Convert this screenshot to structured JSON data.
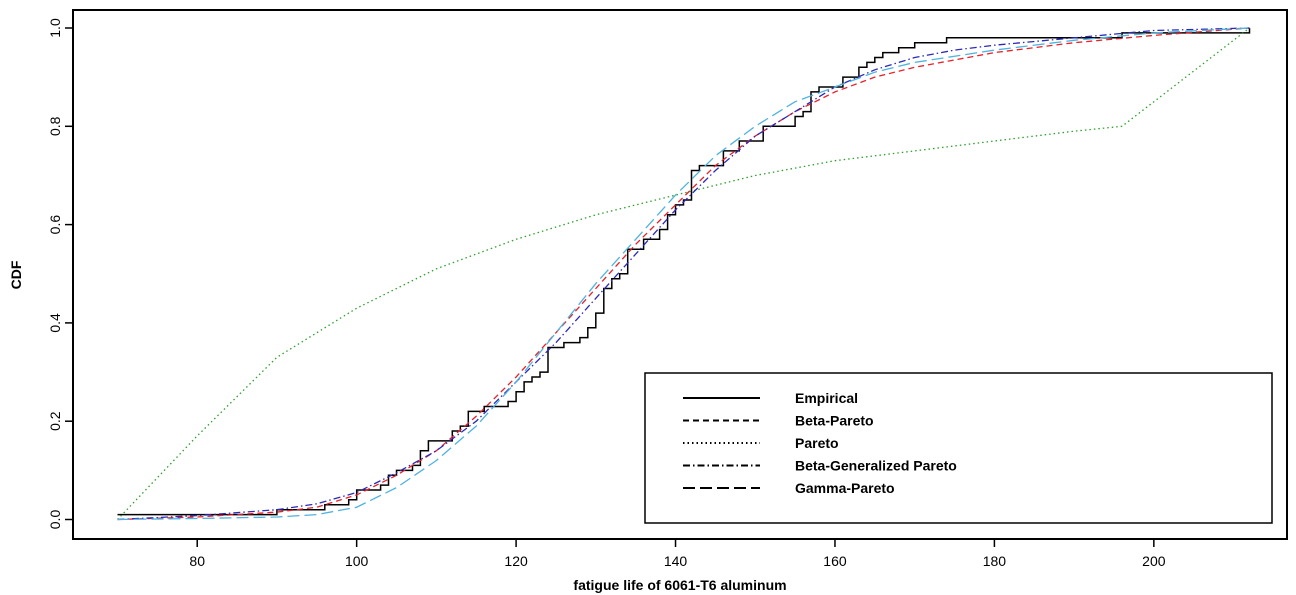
{
  "chart_data": {
    "type": "line",
    "title": "",
    "xlabel": "fatigue life of 6061-T6 aluminum",
    "ylabel": "CDF",
    "xlim": [
      70,
      212
    ],
    "ylim": [
      0,
      1
    ],
    "x_ticks": [
      80,
      100,
      120,
      140,
      160,
      180,
      200
    ],
    "y_ticks": [
      0.0,
      0.2,
      0.4,
      0.6,
      0.8,
      1.0
    ],
    "x_tick_labels": [
      "80",
      "100",
      "120",
      "140",
      "160",
      "180",
      "200"
    ],
    "y_tick_labels": [
      "0.0",
      "0.2",
      "0.4",
      "0.6",
      "0.8",
      "1.0"
    ],
    "grid": false,
    "legend_position": "bottom-right",
    "series": [
      {
        "name": "Empirical",
        "color": "#000000",
        "dash": "solid",
        "step": true,
        "x": [
          70,
          90,
          96,
          99,
          100,
          103,
          104,
          105,
          106,
          107,
          108,
          109,
          112,
          113,
          114,
          116,
          119,
          120,
          121,
          122,
          123,
          124,
          126,
          128,
          129,
          130,
          131,
          132,
          133,
          134,
          136,
          138,
          139,
          140,
          141,
          142,
          143,
          146,
          148,
          151,
          155,
          156,
          157,
          158,
          161,
          162,
          163,
          164,
          165,
          166,
          168,
          170,
          174,
          196,
          212
        ],
        "y": [
          0.01,
          0.02,
          0.03,
          0.04,
          0.06,
          0.07,
          0.09,
          0.1,
          0.1,
          0.11,
          0.14,
          0.16,
          0.18,
          0.19,
          0.22,
          0.23,
          0.24,
          0.26,
          0.28,
          0.29,
          0.3,
          0.35,
          0.36,
          0.37,
          0.39,
          0.42,
          0.47,
          0.49,
          0.5,
          0.55,
          0.57,
          0.59,
          0.62,
          0.64,
          0.65,
          0.71,
          0.72,
          0.75,
          0.77,
          0.8,
          0.82,
          0.83,
          0.87,
          0.88,
          0.9,
          0.9,
          0.92,
          0.93,
          0.94,
          0.95,
          0.96,
          0.97,
          0.98,
          0.99,
          1.0
        ]
      },
      {
        "name": "Beta-Pareto",
        "color": "#e8202a",
        "dash": "dashed",
        "x": [
          70,
          80,
          90,
          95,
          100,
          105,
          110,
          115,
          120,
          125,
          130,
          135,
          140,
          145,
          150,
          155,
          160,
          165,
          170,
          180,
          190,
          200,
          212
        ],
        "y": [
          0.0,
          0.005,
          0.015,
          0.025,
          0.05,
          0.09,
          0.14,
          0.21,
          0.29,
          0.38,
          0.47,
          0.56,
          0.64,
          0.72,
          0.78,
          0.83,
          0.87,
          0.9,
          0.92,
          0.95,
          0.97,
          0.985,
          1.0
        ]
      },
      {
        "name": "Pareto",
        "color": "#2ca02c",
        "dash": "dotted",
        "x": [
          70,
          80,
          90,
          100,
          110,
          120,
          130,
          140,
          150,
          160,
          170,
          180,
          190,
          196,
          212
        ],
        "y": [
          0.0,
          0.17,
          0.33,
          0.43,
          0.51,
          0.57,
          0.62,
          0.66,
          0.7,
          0.73,
          0.75,
          0.77,
          0.79,
          0.8,
          1.0
        ]
      },
      {
        "name": "Beta-Generalized Pareto",
        "color": "#2a2ab8",
        "dash": "dashdot",
        "x": [
          70,
          80,
          90,
          95,
          100,
          105,
          110,
          115,
          120,
          125,
          130,
          135,
          140,
          145,
          150,
          155,
          160,
          165,
          170,
          175,
          180,
          190,
          200,
          212
        ],
        "y": [
          0.0,
          0.008,
          0.02,
          0.032,
          0.055,
          0.095,
          0.14,
          0.2,
          0.28,
          0.36,
          0.45,
          0.54,
          0.63,
          0.71,
          0.78,
          0.83,
          0.88,
          0.915,
          0.94,
          0.955,
          0.965,
          0.98,
          0.995,
          1.0
        ]
      },
      {
        "name": "Gamma-Pareto",
        "color": "#4fb3e0",
        "dash": "longdash",
        "x": [
          70,
          80,
          90,
          95,
          100,
          105,
          110,
          115,
          120,
          125,
          130,
          135,
          140,
          145,
          150,
          155,
          160,
          165,
          170,
          180,
          190,
          200,
          212
        ],
        "y": [
          0.0,
          0.002,
          0.005,
          0.01,
          0.025,
          0.065,
          0.12,
          0.19,
          0.28,
          0.38,
          0.48,
          0.57,
          0.66,
          0.74,
          0.8,
          0.85,
          0.88,
          0.91,
          0.93,
          0.955,
          0.975,
          0.99,
          1.0
        ]
      }
    ],
    "legend": {
      "entries": [
        {
          "label": "Empirical",
          "dash": "solid"
        },
        {
          "label": "Beta-Pareto",
          "dash": "dashed"
        },
        {
          "label": "Pareto",
          "dash": "dotted"
        },
        {
          "label": "Beta-Generalized Pareto",
          "dash": "dashdot"
        },
        {
          "label": "Gamma-Pareto",
          "dash": "longdash"
        }
      ]
    }
  }
}
